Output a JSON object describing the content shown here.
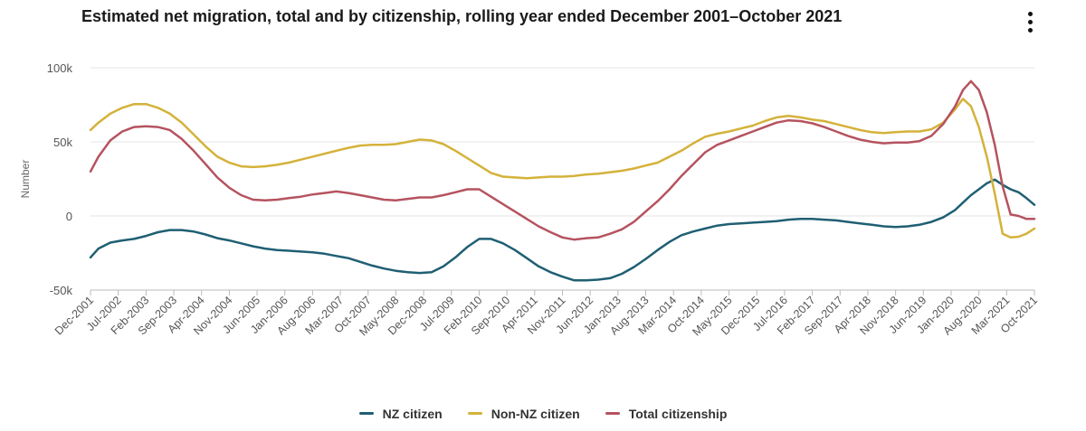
{
  "chart_data": {
    "type": "line",
    "title": "Estimated net migration, total and by citizenship, rolling year ended December 2001–October 2021",
    "xlabel": "",
    "ylabel": "Number",
    "ylim": [
      -50000,
      100000
    ],
    "yticks": [
      {
        "value": 100000,
        "label": "100k"
      },
      {
        "value": 50000,
        "label": "50k"
      },
      {
        "value": 0,
        "label": "0"
      },
      {
        "value": -50000,
        "label": "-50k"
      }
    ],
    "x_range": [
      0,
      238
    ],
    "x_ticks": [
      {
        "label": "Dec-2001",
        "x": 0
      },
      {
        "label": "Jul-2002",
        "x": 7
      },
      {
        "label": "Feb-2003",
        "x": 14
      },
      {
        "label": "Sep-2003",
        "x": 21
      },
      {
        "label": "Apr-2004",
        "x": 28
      },
      {
        "label": "Nov-2004",
        "x": 35
      },
      {
        "label": "Jun-2005",
        "x": 42
      },
      {
        "label": "Jan-2006",
        "x": 49
      },
      {
        "label": "Aug-2006",
        "x": 56
      },
      {
        "label": "Mar-2007",
        "x": 63
      },
      {
        "label": "Oct-2007",
        "x": 70
      },
      {
        "label": "May-2008",
        "x": 77
      },
      {
        "label": "Dec-2008",
        "x": 84
      },
      {
        "label": "Jul-2009",
        "x": 91
      },
      {
        "label": "Feb-2010",
        "x": 98
      },
      {
        "label": "Sep-2010",
        "x": 105
      },
      {
        "label": "Apr-2011",
        "x": 112
      },
      {
        "label": "Nov-2011",
        "x": 119
      },
      {
        "label": "Jun-2012",
        "x": 126
      },
      {
        "label": "Jan-2013",
        "x": 133
      },
      {
        "label": "Aug-2013",
        "x": 140
      },
      {
        "label": "Mar-2014",
        "x": 147
      },
      {
        "label": "Oct-2014",
        "x": 154
      },
      {
        "label": "May-2015",
        "x": 161
      },
      {
        "label": "Dec-2015",
        "x": 168
      },
      {
        "label": "Jul-2016",
        "x": 175
      },
      {
        "label": "Feb-2017",
        "x": 182
      },
      {
        "label": "Sep-2017",
        "x": 189
      },
      {
        "label": "Apr-2018",
        "x": 196
      },
      {
        "label": "Nov-2018",
        "x": 203
      },
      {
        "label": "Jun-2019",
        "x": 210
      },
      {
        "label": "Jan-2020",
        "x": 217
      },
      {
        "label": "Aug-2020",
        "x": 224
      },
      {
        "label": "Mar-2021",
        "x": 231
      },
      {
        "label": "Oct-2021",
        "x": 238
      }
    ],
    "grid": true,
    "legend_position": "bottom",
    "series": [
      {
        "name": "NZ citizen",
        "color": "#1f5f73",
        "points": [
          [
            0,
            -28000
          ],
          [
            2,
            -22000
          ],
          [
            5,
            -18000
          ],
          [
            8,
            -16500
          ],
          [
            11,
            -15500
          ],
          [
            14,
            -13500
          ],
          [
            17,
            -11000
          ],
          [
            20,
            -9500
          ],
          [
            23,
            -9500
          ],
          [
            26,
            -10500
          ],
          [
            29,
            -12500
          ],
          [
            32,
            -15000
          ],
          [
            35,
            -16500
          ],
          [
            38,
            -18500
          ],
          [
            41,
            -20500
          ],
          [
            44,
            -22000
          ],
          [
            47,
            -23000
          ],
          [
            50,
            -23500
          ],
          [
            53,
            -24000
          ],
          [
            56,
            -24500
          ],
          [
            59,
            -25500
          ],
          [
            62,
            -27000
          ],
          [
            65,
            -28500
          ],
          [
            68,
            -31000
          ],
          [
            71,
            -33500
          ],
          [
            74,
            -35500
          ],
          [
            77,
            -37000
          ],
          [
            80,
            -38000
          ],
          [
            83,
            -38500
          ],
          [
            86,
            -38000
          ],
          [
            89,
            -34000
          ],
          [
            92,
            -28000
          ],
          [
            95,
            -21000
          ],
          [
            98,
            -15500
          ],
          [
            101,
            -15500
          ],
          [
            104,
            -18500
          ],
          [
            107,
            -23000
          ],
          [
            110,
            -28500
          ],
          [
            113,
            -34000
          ],
          [
            116,
            -38000
          ],
          [
            119,
            -41000
          ],
          [
            122,
            -43500
          ],
          [
            125,
            -43500
          ],
          [
            128,
            -43000
          ],
          [
            131,
            -42000
          ],
          [
            134,
            -39000
          ],
          [
            137,
            -34500
          ],
          [
            140,
            -29000
          ],
          [
            143,
            -23000
          ],
          [
            146,
            -17500
          ],
          [
            149,
            -13000
          ],
          [
            152,
            -10500
          ],
          [
            155,
            -8500
          ],
          [
            158,
            -6500
          ],
          [
            161,
            -5500
          ],
          [
            164,
            -5000
          ],
          [
            167,
            -4500
          ],
          [
            170,
            -4000
          ],
          [
            173,
            -3500
          ],
          [
            176,
            -2500
          ],
          [
            179,
            -2000
          ],
          [
            182,
            -2000
          ],
          [
            185,
            -2500
          ],
          [
            188,
            -3000
          ],
          [
            191,
            -4000
          ],
          [
            194,
            -5000
          ],
          [
            197,
            -6000
          ],
          [
            200,
            -7000
          ],
          [
            203,
            -7500
          ],
          [
            206,
            -7000
          ],
          [
            209,
            -6000
          ],
          [
            212,
            -4000
          ],
          [
            215,
            -1000
          ],
          [
            218,
            4000
          ],
          [
            220,
            9000
          ],
          [
            222,
            14000
          ],
          [
            224,
            18000
          ],
          [
            226,
            22000
          ],
          [
            228,
            24500
          ],
          [
            230,
            21000
          ],
          [
            232,
            18000
          ],
          [
            234,
            16000
          ],
          [
            236,
            12000
          ],
          [
            238,
            7500
          ]
        ]
      },
      {
        "name": "Non-NZ citizen",
        "color": "#d4b23a",
        "points": [
          [
            0,
            58000
          ],
          [
            2,
            63000
          ],
          [
            5,
            69000
          ],
          [
            8,
            73000
          ],
          [
            11,
            75500
          ],
          [
            14,
            75500
          ],
          [
            17,
            73000
          ],
          [
            20,
            69000
          ],
          [
            23,
            63000
          ],
          [
            26,
            55000
          ],
          [
            29,
            47000
          ],
          [
            32,
            40000
          ],
          [
            35,
            36000
          ],
          [
            38,
            33500
          ],
          [
            41,
            33000
          ],
          [
            44,
            33500
          ],
          [
            47,
            34500
          ],
          [
            50,
            36000
          ],
          [
            53,
            38000
          ],
          [
            56,
            40000
          ],
          [
            59,
            42000
          ],
          [
            62,
            44000
          ],
          [
            65,
            46000
          ],
          [
            68,
            47500
          ],
          [
            71,
            48000
          ],
          [
            74,
            48000
          ],
          [
            77,
            48500
          ],
          [
            80,
            50000
          ],
          [
            83,
            51500
          ],
          [
            86,
            51000
          ],
          [
            89,
            48500
          ],
          [
            92,
            44000
          ],
          [
            95,
            39000
          ],
          [
            98,
            34000
          ],
          [
            101,
            29000
          ],
          [
            104,
            26500
          ],
          [
            107,
            26000
          ],
          [
            110,
            25500
          ],
          [
            113,
            26000
          ],
          [
            116,
            26500
          ],
          [
            119,
            26500
          ],
          [
            122,
            27000
          ],
          [
            125,
            28000
          ],
          [
            128,
            28500
          ],
          [
            131,
            29500
          ],
          [
            134,
            30500
          ],
          [
            137,
            32000
          ],
          [
            140,
            34000
          ],
          [
            143,
            36000
          ],
          [
            146,
            40000
          ],
          [
            149,
            44000
          ],
          [
            152,
            49000
          ],
          [
            155,
            53500
          ],
          [
            158,
            55500
          ],
          [
            161,
            57000
          ],
          [
            164,
            59000
          ],
          [
            167,
            61000
          ],
          [
            170,
            64000
          ],
          [
            173,
            66500
          ],
          [
            176,
            67500
          ],
          [
            179,
            66500
          ],
          [
            182,
            65000
          ],
          [
            185,
            64000
          ],
          [
            188,
            62000
          ],
          [
            191,
            60000
          ],
          [
            194,
            58000
          ],
          [
            197,
            56500
          ],
          [
            200,
            56000
          ],
          [
            203,
            56500
          ],
          [
            206,
            57000
          ],
          [
            209,
            57000
          ],
          [
            212,
            58500
          ],
          [
            215,
            63000
          ],
          [
            218,
            72000
          ],
          [
            220,
            79000
          ],
          [
            222,
            74000
          ],
          [
            224,
            60000
          ],
          [
            226,
            40000
          ],
          [
            228,
            15000
          ],
          [
            230,
            -12000
          ],
          [
            232,
            -14500
          ],
          [
            234,
            -14000
          ],
          [
            236,
            -12000
          ],
          [
            238,
            -8500
          ]
        ]
      },
      {
        "name": "Total citizenship",
        "color": "#b5535f",
        "points": [
          [
            0,
            30000
          ],
          [
            2,
            40000
          ],
          [
            5,
            51000
          ],
          [
            8,
            57000
          ],
          [
            11,
            60000
          ],
          [
            14,
            60500
          ],
          [
            17,
            60000
          ],
          [
            20,
            58000
          ],
          [
            23,
            52000
          ],
          [
            26,
            44000
          ],
          [
            29,
            35000
          ],
          [
            32,
            26000
          ],
          [
            35,
            19000
          ],
          [
            38,
            14000
          ],
          [
            41,
            11000
          ],
          [
            44,
            10500
          ],
          [
            47,
            11000
          ],
          [
            50,
            12000
          ],
          [
            53,
            13000
          ],
          [
            56,
            14500
          ],
          [
            59,
            15500
          ],
          [
            62,
            16500
          ],
          [
            65,
            15500
          ],
          [
            68,
            14000
          ],
          [
            71,
            12500
          ],
          [
            74,
            11000
          ],
          [
            77,
            10500
          ],
          [
            80,
            11500
          ],
          [
            83,
            12500
          ],
          [
            86,
            12500
          ],
          [
            89,
            14000
          ],
          [
            92,
            16000
          ],
          [
            95,
            18000
          ],
          [
            98,
            18000
          ],
          [
            101,
            13000
          ],
          [
            104,
            8000
          ],
          [
            107,
            3000
          ],
          [
            110,
            -2000
          ],
          [
            113,
            -7000
          ],
          [
            116,
            -11000
          ],
          [
            119,
            -14500
          ],
          [
            122,
            -16000
          ],
          [
            125,
            -15000
          ],
          [
            128,
            -14500
          ],
          [
            131,
            -12000
          ],
          [
            134,
            -9000
          ],
          [
            137,
            -4000
          ],
          [
            140,
            3000
          ],
          [
            143,
            10000
          ],
          [
            146,
            18000
          ],
          [
            149,
            27000
          ],
          [
            152,
            35000
          ],
          [
            155,
            43000
          ],
          [
            158,
            48000
          ],
          [
            161,
            51000
          ],
          [
            164,
            54000
          ],
          [
            167,
            57000
          ],
          [
            170,
            60000
          ],
          [
            173,
            63000
          ],
          [
            176,
            64500
          ],
          [
            179,
            64000
          ],
          [
            182,
            62500
          ],
          [
            185,
            60000
          ],
          [
            188,
            57000
          ],
          [
            191,
            54000
          ],
          [
            194,
            51500
          ],
          [
            197,
            50000
          ],
          [
            200,
            49000
          ],
          [
            203,
            49500
          ],
          [
            206,
            49500
          ],
          [
            209,
            50500
          ],
          [
            212,
            54000
          ],
          [
            215,
            62000
          ],
          [
            218,
            74000
          ],
          [
            220,
            85000
          ],
          [
            222,
            91000
          ],
          [
            224,
            85000
          ],
          [
            226,
            70000
          ],
          [
            228,
            48000
          ],
          [
            230,
            20000
          ],
          [
            232,
            1000
          ],
          [
            234,
            0
          ],
          [
            236,
            -2000
          ],
          [
            238,
            -2000
          ]
        ]
      }
    ]
  },
  "ui": {
    "menu_icon": "more-vertical-icon"
  }
}
